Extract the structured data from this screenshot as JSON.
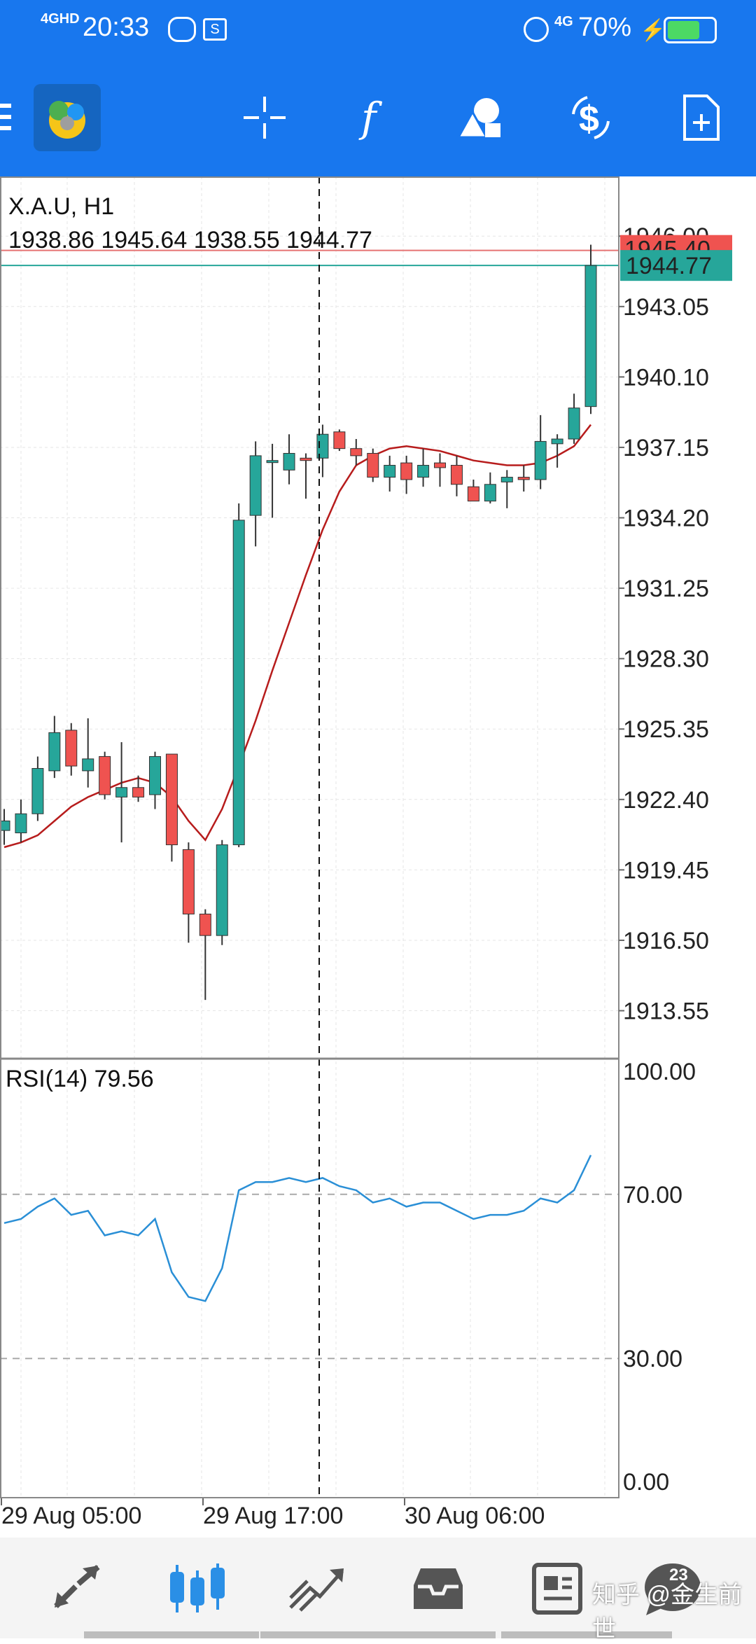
{
  "status_bar": {
    "network": "4GHD",
    "time": "20:33",
    "network2": "4G",
    "battery_percent": "70%",
    "battery_level": 70
  },
  "toolbar": {
    "icons": [
      "menu-icon",
      "app-logo-icon",
      "crosshair-icon",
      "function-icon",
      "shapes-icon",
      "dollar-sync-icon",
      "new-document-icon"
    ]
  },
  "chart": {
    "symbol": "X.A.U, H1",
    "ohlc": "1938.86 1945.64 1938.55 1944.77",
    "current_price_label": "1944.77",
    "hidden_price_label": "1945.40",
    "price_ticks": [
      "1946.00",
      "1943.05",
      "1940.10",
      "1937.15",
      "1934.20",
      "1931.25",
      "1928.30",
      "1925.35",
      "1922.40",
      "1919.45",
      "1916.50",
      "1913.55"
    ],
    "time_labels": [
      "29 Aug 05:00",
      "29 Aug 17:00",
      "30 Aug 06:00"
    ],
    "colors": {
      "bull": "#26a69a",
      "bear": "#ef5350",
      "ma": "#b71c1c",
      "rsi": "#2a8fd6",
      "ask_line": "#e57373",
      "bid_line": "#26a69a"
    }
  },
  "rsi": {
    "label": "RSI(14) 79.56",
    "ticks": [
      "100.00",
      "70.00",
      "30.00",
      "0.00"
    ]
  },
  "chart_data": {
    "type": "candlestick",
    "candles": [
      {
        "o": 1921.1,
        "h": 1922.0,
        "l": 1920.5,
        "c": 1921.5
      },
      {
        "o": 1921.0,
        "h": 1922.4,
        "l": 1920.6,
        "c": 1921.8
      },
      {
        "o": 1921.8,
        "h": 1924.2,
        "l": 1921.5,
        "c": 1923.7
      },
      {
        "o": 1923.6,
        "h": 1925.9,
        "l": 1923.3,
        "c": 1925.2
      },
      {
        "o": 1925.3,
        "h": 1925.6,
        "l": 1923.4,
        "c": 1923.8
      },
      {
        "o": 1923.6,
        "h": 1925.8,
        "l": 1922.9,
        "c": 1924.1
      },
      {
        "o": 1924.2,
        "h": 1924.4,
        "l": 1922.4,
        "c": 1922.6
      },
      {
        "o": 1922.5,
        "h": 1924.8,
        "l": 1920.6,
        "c": 1922.9
      },
      {
        "o": 1922.9,
        "h": 1923.4,
        "l": 1922.3,
        "c": 1922.5
      },
      {
        "o": 1922.6,
        "h": 1924.4,
        "l": 1922.0,
        "c": 1924.2
      },
      {
        "o": 1924.3,
        "h": 1924.3,
        "l": 1919.8,
        "c": 1920.5
      },
      {
        "o": 1920.3,
        "h": 1920.6,
        "l": 1916.4,
        "c": 1917.6
      },
      {
        "o": 1917.6,
        "h": 1917.8,
        "l": 1914.0,
        "c": 1916.7
      },
      {
        "o": 1916.7,
        "h": 1920.7,
        "l": 1916.3,
        "c": 1920.5
      },
      {
        "o": 1920.5,
        "h": 1934.8,
        "l": 1920.4,
        "c": 1934.1
      },
      {
        "o": 1934.3,
        "h": 1937.4,
        "l": 1933.0,
        "c": 1936.8
      },
      {
        "o": 1936.6,
        "h": 1937.3,
        "l": 1934.2,
        "c": 1936.6
      },
      {
        "o": 1936.2,
        "h": 1937.7,
        "l": 1935.6,
        "c": 1936.9
      },
      {
        "o": 1936.7,
        "h": 1936.9,
        "l": 1935.0,
        "c": 1936.6
      },
      {
        "o": 1936.7,
        "h": 1938.1,
        "l": 1935.9,
        "c": 1937.7
      },
      {
        "o": 1937.8,
        "h": 1937.9,
        "l": 1937.0,
        "c": 1937.1
      },
      {
        "o": 1937.1,
        "h": 1937.5,
        "l": 1936.4,
        "c": 1936.8
      },
      {
        "o": 1936.9,
        "h": 1937.1,
        "l": 1935.7,
        "c": 1935.9
      },
      {
        "o": 1935.9,
        "h": 1936.8,
        "l": 1935.3,
        "c": 1936.4
      },
      {
        "o": 1936.5,
        "h": 1936.8,
        "l": 1935.2,
        "c": 1935.8
      },
      {
        "o": 1935.9,
        "h": 1937.1,
        "l": 1935.5,
        "c": 1936.4
      },
      {
        "o": 1936.5,
        "h": 1936.9,
        "l": 1935.5,
        "c": 1936.3
      },
      {
        "o": 1936.4,
        "h": 1936.8,
        "l": 1935.1,
        "c": 1935.6
      },
      {
        "o": 1935.5,
        "h": 1935.8,
        "l": 1934.9,
        "c": 1934.9
      },
      {
        "o": 1934.9,
        "h": 1936.1,
        "l": 1934.8,
        "c": 1935.6
      },
      {
        "o": 1935.7,
        "h": 1936.2,
        "l": 1934.6,
        "c": 1935.9
      },
      {
        "o": 1935.9,
        "h": 1936.4,
        "l": 1935.3,
        "c": 1935.8
      },
      {
        "o": 1935.8,
        "h": 1938.5,
        "l": 1935.4,
        "c": 1937.4
      },
      {
        "o": 1937.3,
        "h": 1937.7,
        "l": 1936.3,
        "c": 1937.5
      },
      {
        "o": 1937.5,
        "h": 1939.4,
        "l": 1937.3,
        "c": 1938.8
      },
      {
        "o": 1938.86,
        "h": 1945.64,
        "l": 1938.55,
        "c": 1944.77
      }
    ],
    "ma": [
      1920.4,
      1920.6,
      1920.9,
      1921.5,
      1922.1,
      1922.5,
      1922.8,
      1923.1,
      1923.3,
      1923.1,
      1922.5,
      1921.5,
      1920.7,
      1922.0,
      1923.8,
      1925.7,
      1927.8,
      1929.8,
      1931.8,
      1933.7,
      1935.3,
      1936.4,
      1936.8,
      1937.1,
      1937.2,
      1937.1,
      1937.0,
      1936.8,
      1936.6,
      1936.5,
      1936.4,
      1936.4,
      1936.5,
      1936.8,
      1937.2,
      1938.1
    ],
    "rsi": [
      63,
      64,
      67,
      69,
      65,
      66,
      60,
      61,
      60,
      64,
      51,
      45,
      44,
      52,
      71,
      73,
      73,
      74,
      73,
      74,
      72,
      71,
      68,
      69,
      67,
      68,
      68,
      66,
      64,
      65,
      65,
      66,
      69,
      68,
      71,
      79.56
    ],
    "ylim": [
      1911.6,
      1948.5
    ],
    "rsi_ylim": [
      0,
      100
    ],
    "last_price": 1944.77,
    "ask_price": 1945.4
  },
  "bottom_nav": {
    "items": [
      "quotes-icon",
      "chart-icon",
      "trade-icon",
      "history-icon",
      "news-icon",
      "chat-icon"
    ],
    "badge": "23"
  },
  "watermark": "知乎 @金生前世"
}
